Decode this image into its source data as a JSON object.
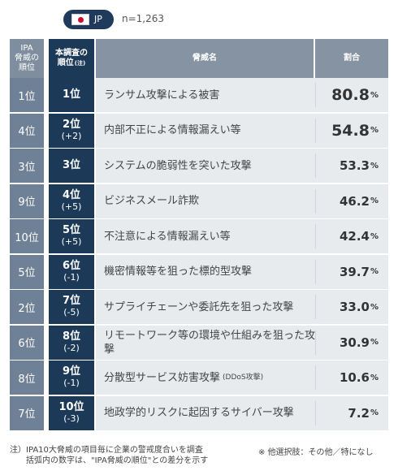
{
  "badge": {
    "code": "JP"
  },
  "sample": "n=1,263",
  "headers": {
    "ipa": "IPA\n脅威の\n順位",
    "rank": "本調査の\n順位",
    "rank_note": "(注)",
    "threat": "脅威名",
    "pct": "割合"
  },
  "chart_data": {
    "type": "table",
    "columns": [
      "IPA脅威の順位",
      "本調査の順位",
      "脅威名",
      "割合"
    ],
    "rows": [
      {
        "ipa": "1位",
        "rank": "1位",
        "diff": "",
        "threat": "ランサム攻撃による被害",
        "sub": "",
        "value": 80.8
      },
      {
        "ipa": "4位",
        "rank": "2位",
        "diff": "(+2)",
        "threat": "内部不正による情報漏えい等",
        "sub": "",
        "value": 54.8
      },
      {
        "ipa": "3位",
        "rank": "3位",
        "diff": "",
        "threat": "システムの脆弱性を突いた攻撃",
        "sub": "",
        "value": 53.3
      },
      {
        "ipa": "9位",
        "rank": "4位",
        "diff": "(+5)",
        "threat": "ビジネスメール詐欺",
        "sub": "",
        "value": 46.2
      },
      {
        "ipa": "10位",
        "rank": "5位",
        "diff": "(+5)",
        "threat": "不注意による情報漏えい等",
        "sub": "",
        "value": 42.4
      },
      {
        "ipa": "5位",
        "rank": "6位",
        "diff": "(-1)",
        "threat": "機密情報等を狙った標的型攻撃",
        "sub": "",
        "value": 39.7
      },
      {
        "ipa": "2位",
        "rank": "7位",
        "diff": "(-5)",
        "threat": "サプライチェーンや委託先を狙った攻撃",
        "sub": "",
        "value": 33.0
      },
      {
        "ipa": "6位",
        "rank": "8位",
        "diff": "(-2)",
        "threat": "リモートワーク等の環境や仕組みを狙った攻撃",
        "sub": "",
        "value": 30.9
      },
      {
        "ipa": "8位",
        "rank": "9位",
        "diff": "(-1)",
        "threat": "分散型サービス妨害攻撃",
        "sub": "(DDoS攻撃)",
        "value": 10.6
      },
      {
        "ipa": "7位",
        "rank": "10位",
        "diff": "(-3)",
        "threat": "地政学的リスクに起因するサイバー攻撃",
        "sub": "",
        "value": 7.2
      }
    ],
    "unit": "%"
  },
  "notes": {
    "line1": "注）IPA10大脅威の項目毎に企業の警戒度合いを調査",
    "line2": "　　括弧内の数字は、\"IPA脅威の順位\"との差分を示す",
    "other": "※ 他選択肢：その他／特になし"
  },
  "colors": {
    "navy": "#1c3a57",
    "slate": "#6f8196",
    "cell": "#e8ebee",
    "red": "#c8102e"
  }
}
